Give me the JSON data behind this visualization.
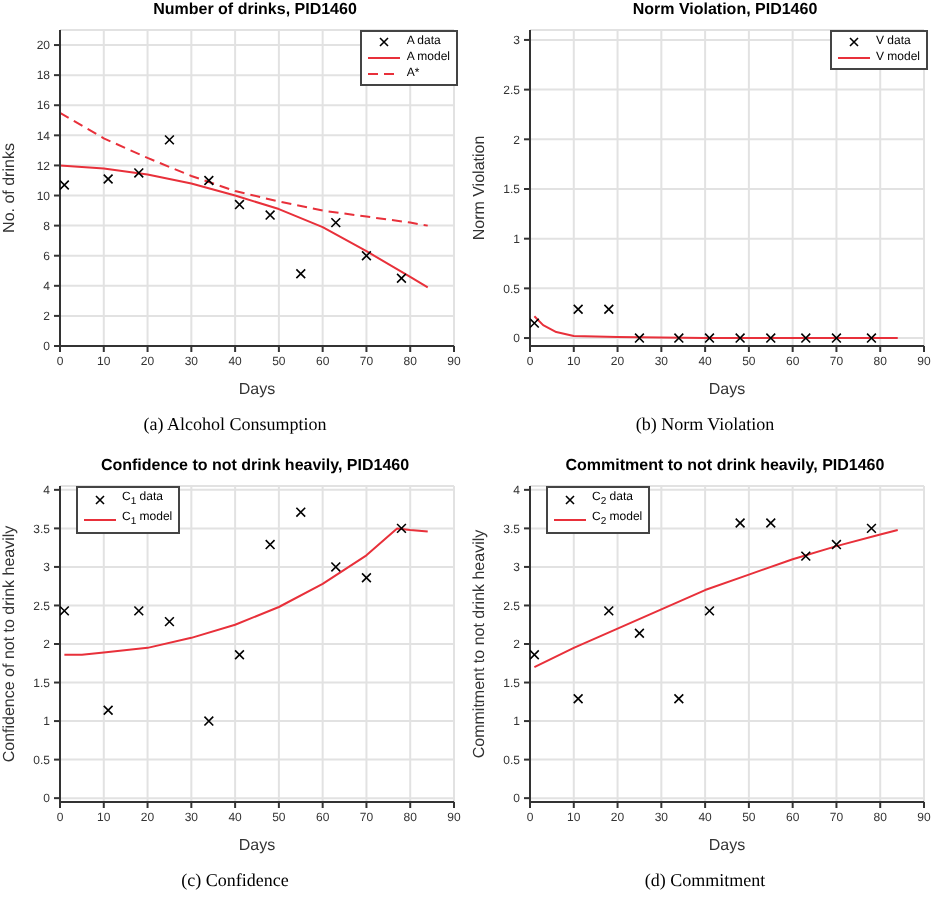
{
  "chart_data": [
    {
      "type": "line",
      "title": "Number of drinks, PID1460",
      "xlabel": "Days",
      "ylabel": "No. of drinks",
      "xlim": [
        0,
        90
      ],
      "xticks": [
        0,
        10,
        20,
        30,
        40,
        50,
        60,
        70,
        80,
        90
      ],
      "ylim": [
        0,
        21
      ],
      "yticks": [
        0,
        2,
        4,
        6,
        8,
        10,
        12,
        14,
        16,
        18,
        20
      ],
      "grid": true,
      "legend": "top right",
      "annotations": [
        "(a) Alcohol Consumption"
      ],
      "series": [
        {
          "name": "A data",
          "type": "scatter",
          "marker": "cross",
          "color": "#000000",
          "x": [
            1,
            11,
            18,
            25,
            34,
            41,
            48,
            55,
            63,
            70,
            78
          ],
          "values": [
            10.7,
            11.1,
            11.5,
            13.7,
            11.0,
            9.4,
            8.7,
            4.8,
            8.2,
            6.0,
            4.5
          ]
        },
        {
          "name": "A model",
          "type": "line",
          "color": "#e8303a",
          "line_style": "solid",
          "x": [
            0,
            10,
            20,
            30,
            40,
            50,
            60,
            70,
            80,
            84
          ],
          "values": [
            12.0,
            11.8,
            11.4,
            10.8,
            10.0,
            9.1,
            7.9,
            6.3,
            4.6,
            3.9
          ]
        },
        {
          "name": "A*",
          "type": "line",
          "color": "#e8303a",
          "line_style": "dashed",
          "x": [
            0,
            10,
            20,
            30,
            40,
            50,
            60,
            70,
            80,
            84
          ],
          "values": [
            15.5,
            13.8,
            12.5,
            11.3,
            10.3,
            9.6,
            9.0,
            8.6,
            8.2,
            8.0
          ]
        }
      ]
    },
    {
      "type": "line",
      "title": "Norm Violation, PID1460",
      "xlabel": "Days",
      "ylabel": "Norm Violation",
      "xlim": [
        0,
        90
      ],
      "xticks": [
        0,
        10,
        20,
        30,
        40,
        50,
        60,
        70,
        80,
        90
      ],
      "ylim": [
        -0.08,
        3.1
      ],
      "yticks": [
        0,
        0.5,
        1,
        1.5,
        2,
        2.5,
        3
      ],
      "grid": true,
      "legend": "top right",
      "annotations": [
        "(b) Norm Violation"
      ],
      "series": [
        {
          "name": "V data",
          "type": "scatter",
          "marker": "cross",
          "color": "#000000",
          "x": [
            1,
            11,
            18,
            25,
            34,
            41,
            48,
            55,
            63,
            70,
            78
          ],
          "values": [
            0.15,
            0.29,
            0.29,
            0,
            0,
            0,
            0,
            0,
            0,
            0,
            0
          ]
        },
        {
          "name": "V model",
          "type": "line",
          "color": "#e8303a",
          "line_style": "solid",
          "x": [
            1,
            3,
            6,
            10,
            20,
            40,
            84
          ],
          "values": [
            0.22,
            0.13,
            0.06,
            0.02,
            0.01,
            0,
            0
          ]
        }
      ]
    },
    {
      "type": "line",
      "title": "Confidence to not drink heavily, PID1460",
      "xlabel": "Days",
      "ylabel": "Confidence of not to drink heavily",
      "xlim": [
        0,
        90
      ],
      "xticks": [
        0,
        10,
        20,
        30,
        40,
        50,
        60,
        70,
        80,
        90
      ],
      "ylim": [
        -0.05,
        4.05
      ],
      "yticks": [
        0,
        0.5,
        1,
        1.5,
        2,
        2.5,
        3,
        3.5,
        4
      ],
      "grid": true,
      "legend": "top left",
      "annotations": [
        "(c) Confidence"
      ],
      "series": [
        {
          "name": "C$_{1}$ data",
          "type": "scatter",
          "marker": "cross",
          "color": "#000000",
          "x": [
            1,
            11,
            18,
            25,
            34,
            41,
            48,
            55,
            63,
            70,
            78
          ],
          "values": [
            2.43,
            1.14,
            2.43,
            2.29,
            1.0,
            1.86,
            3.29,
            3.71,
            3.0,
            2.86,
            3.5
          ]
        },
        {
          "name": "C$_{1}$ model",
          "type": "line",
          "color": "#e8303a",
          "line_style": "solid",
          "x": [
            1,
            5,
            10,
            20,
            30,
            40,
            50,
            60,
            70,
            77,
            80,
            84
          ],
          "values": [
            1.86,
            1.86,
            1.89,
            1.95,
            2.08,
            2.25,
            2.48,
            2.78,
            3.15,
            3.5,
            3.48,
            3.46
          ]
        }
      ]
    },
    {
      "type": "line",
      "title": "Commitment to not drink heavily, PID1460",
      "xlabel": "Days",
      "ylabel": "Commitment to not drink heavily",
      "xlim": [
        0,
        90
      ],
      "xticks": [
        0,
        10,
        20,
        30,
        40,
        50,
        60,
        70,
        80,
        90
      ],
      "ylim": [
        -0.05,
        4.05
      ],
      "yticks": [
        0,
        0.5,
        1,
        1.5,
        2,
        2.5,
        3,
        3.5,
        4
      ],
      "grid": true,
      "legend": "top left",
      "annotations": [
        "(d) Commitment"
      ],
      "series": [
        {
          "name": "C$_{2}$ data",
          "type": "scatter",
          "marker": "cross",
          "color": "#000000",
          "x": [
            1,
            11,
            18,
            25,
            34,
            41,
            48,
            55,
            63,
            70,
            78
          ],
          "values": [
            1.86,
            1.29,
            2.43,
            2.14,
            1.29,
            2.43,
            3.57,
            3.57,
            3.14,
            3.29,
            3.5
          ]
        },
        {
          "name": "C$_{2}$ model",
          "type": "line",
          "color": "#e8303a",
          "line_style": "solid",
          "x": [
            1,
            10,
            20,
            30,
            40,
            50,
            60,
            70,
            80,
            84
          ],
          "values": [
            1.7,
            1.95,
            2.2,
            2.45,
            2.7,
            2.9,
            3.1,
            3.27,
            3.42,
            3.48
          ]
        }
      ]
    }
  ]
}
